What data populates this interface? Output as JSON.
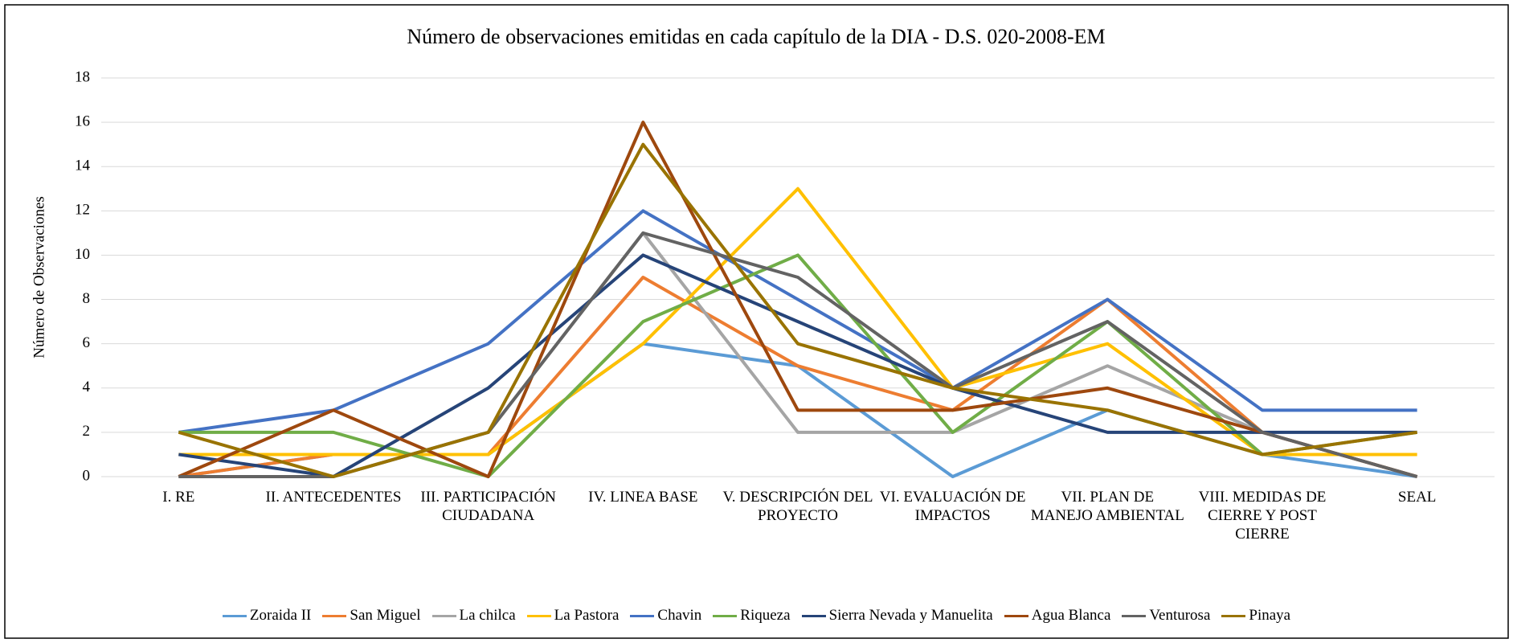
{
  "chart_data": {
    "type": "line",
    "title": "Número de observaciones emitidas en cada capítulo de la DIA - D.S. 020-2008-EM",
    "y_label": "Número de Observaciones",
    "categories": [
      "I. RE",
      "II. ANTECEDENTES",
      "III. PARTICIPACIÓN CIUDADANA",
      "IV. LINEA BASE",
      "V. DESCRIPCIÓN DEL PROYECTO",
      "VI. EVALUACIÓN DE IMPACTOS",
      "VII. PLAN DE MANEJO AMBIENTAL",
      "VIII. MEDIDAS DE CIERRE Y POST CIERRE",
      "SEAL"
    ],
    "series": [
      {
        "name": "Zoraida II",
        "color": "#5b9bd5",
        "values": [
          0,
          1,
          1,
          6,
          5,
          0,
          3,
          1,
          0
        ]
      },
      {
        "name": "San Miguel",
        "color": "#ed7d31",
        "values": [
          0,
          1,
          1,
          9,
          5,
          3,
          8,
          2,
          0
        ]
      },
      {
        "name": "La chilca",
        "color": "#a5a5a5",
        "values": [
          0,
          0,
          2,
          11,
          2,
          2,
          5,
          2,
          0
        ]
      },
      {
        "name": "La Pastora",
        "color": "#ffc000",
        "values": [
          1,
          1,
          1,
          6,
          13,
          4,
          6,
          1,
          1
        ]
      },
      {
        "name": "Chavin",
        "color": "#4472c4",
        "values": [
          2,
          3,
          6,
          12,
          8,
          4,
          8,
          3,
          3
        ]
      },
      {
        "name": "Riqueza",
        "color": "#70ad47",
        "values": [
          2,
          2,
          0,
          7,
          10,
          2,
          7,
          1,
          2
        ]
      },
      {
        "name": "Sierra Nevada y Manuelita",
        "color": "#264478",
        "values": [
          1,
          0,
          4,
          10,
          7,
          4,
          2,
          2,
          2
        ]
      },
      {
        "name": "Agua Blanca",
        "color": "#9e480e",
        "values": [
          0,
          3,
          0,
          16,
          3,
          3,
          4,
          2,
          0
        ]
      },
      {
        "name": "Venturosa",
        "color": "#636363",
        "values": [
          0,
          0,
          2,
          11,
          9,
          4,
          7,
          2,
          0
        ]
      },
      {
        "name": "Pinaya",
        "color": "#997300",
        "values": [
          2,
          0,
          2,
          15,
          6,
          4,
          3,
          1,
          2
        ]
      }
    ],
    "ylim": [
      0,
      18
    ],
    "yticks": [
      0,
      2,
      4,
      6,
      8,
      10,
      12,
      14,
      16,
      18
    ],
    "grid": true,
    "legend": "bottom"
  }
}
